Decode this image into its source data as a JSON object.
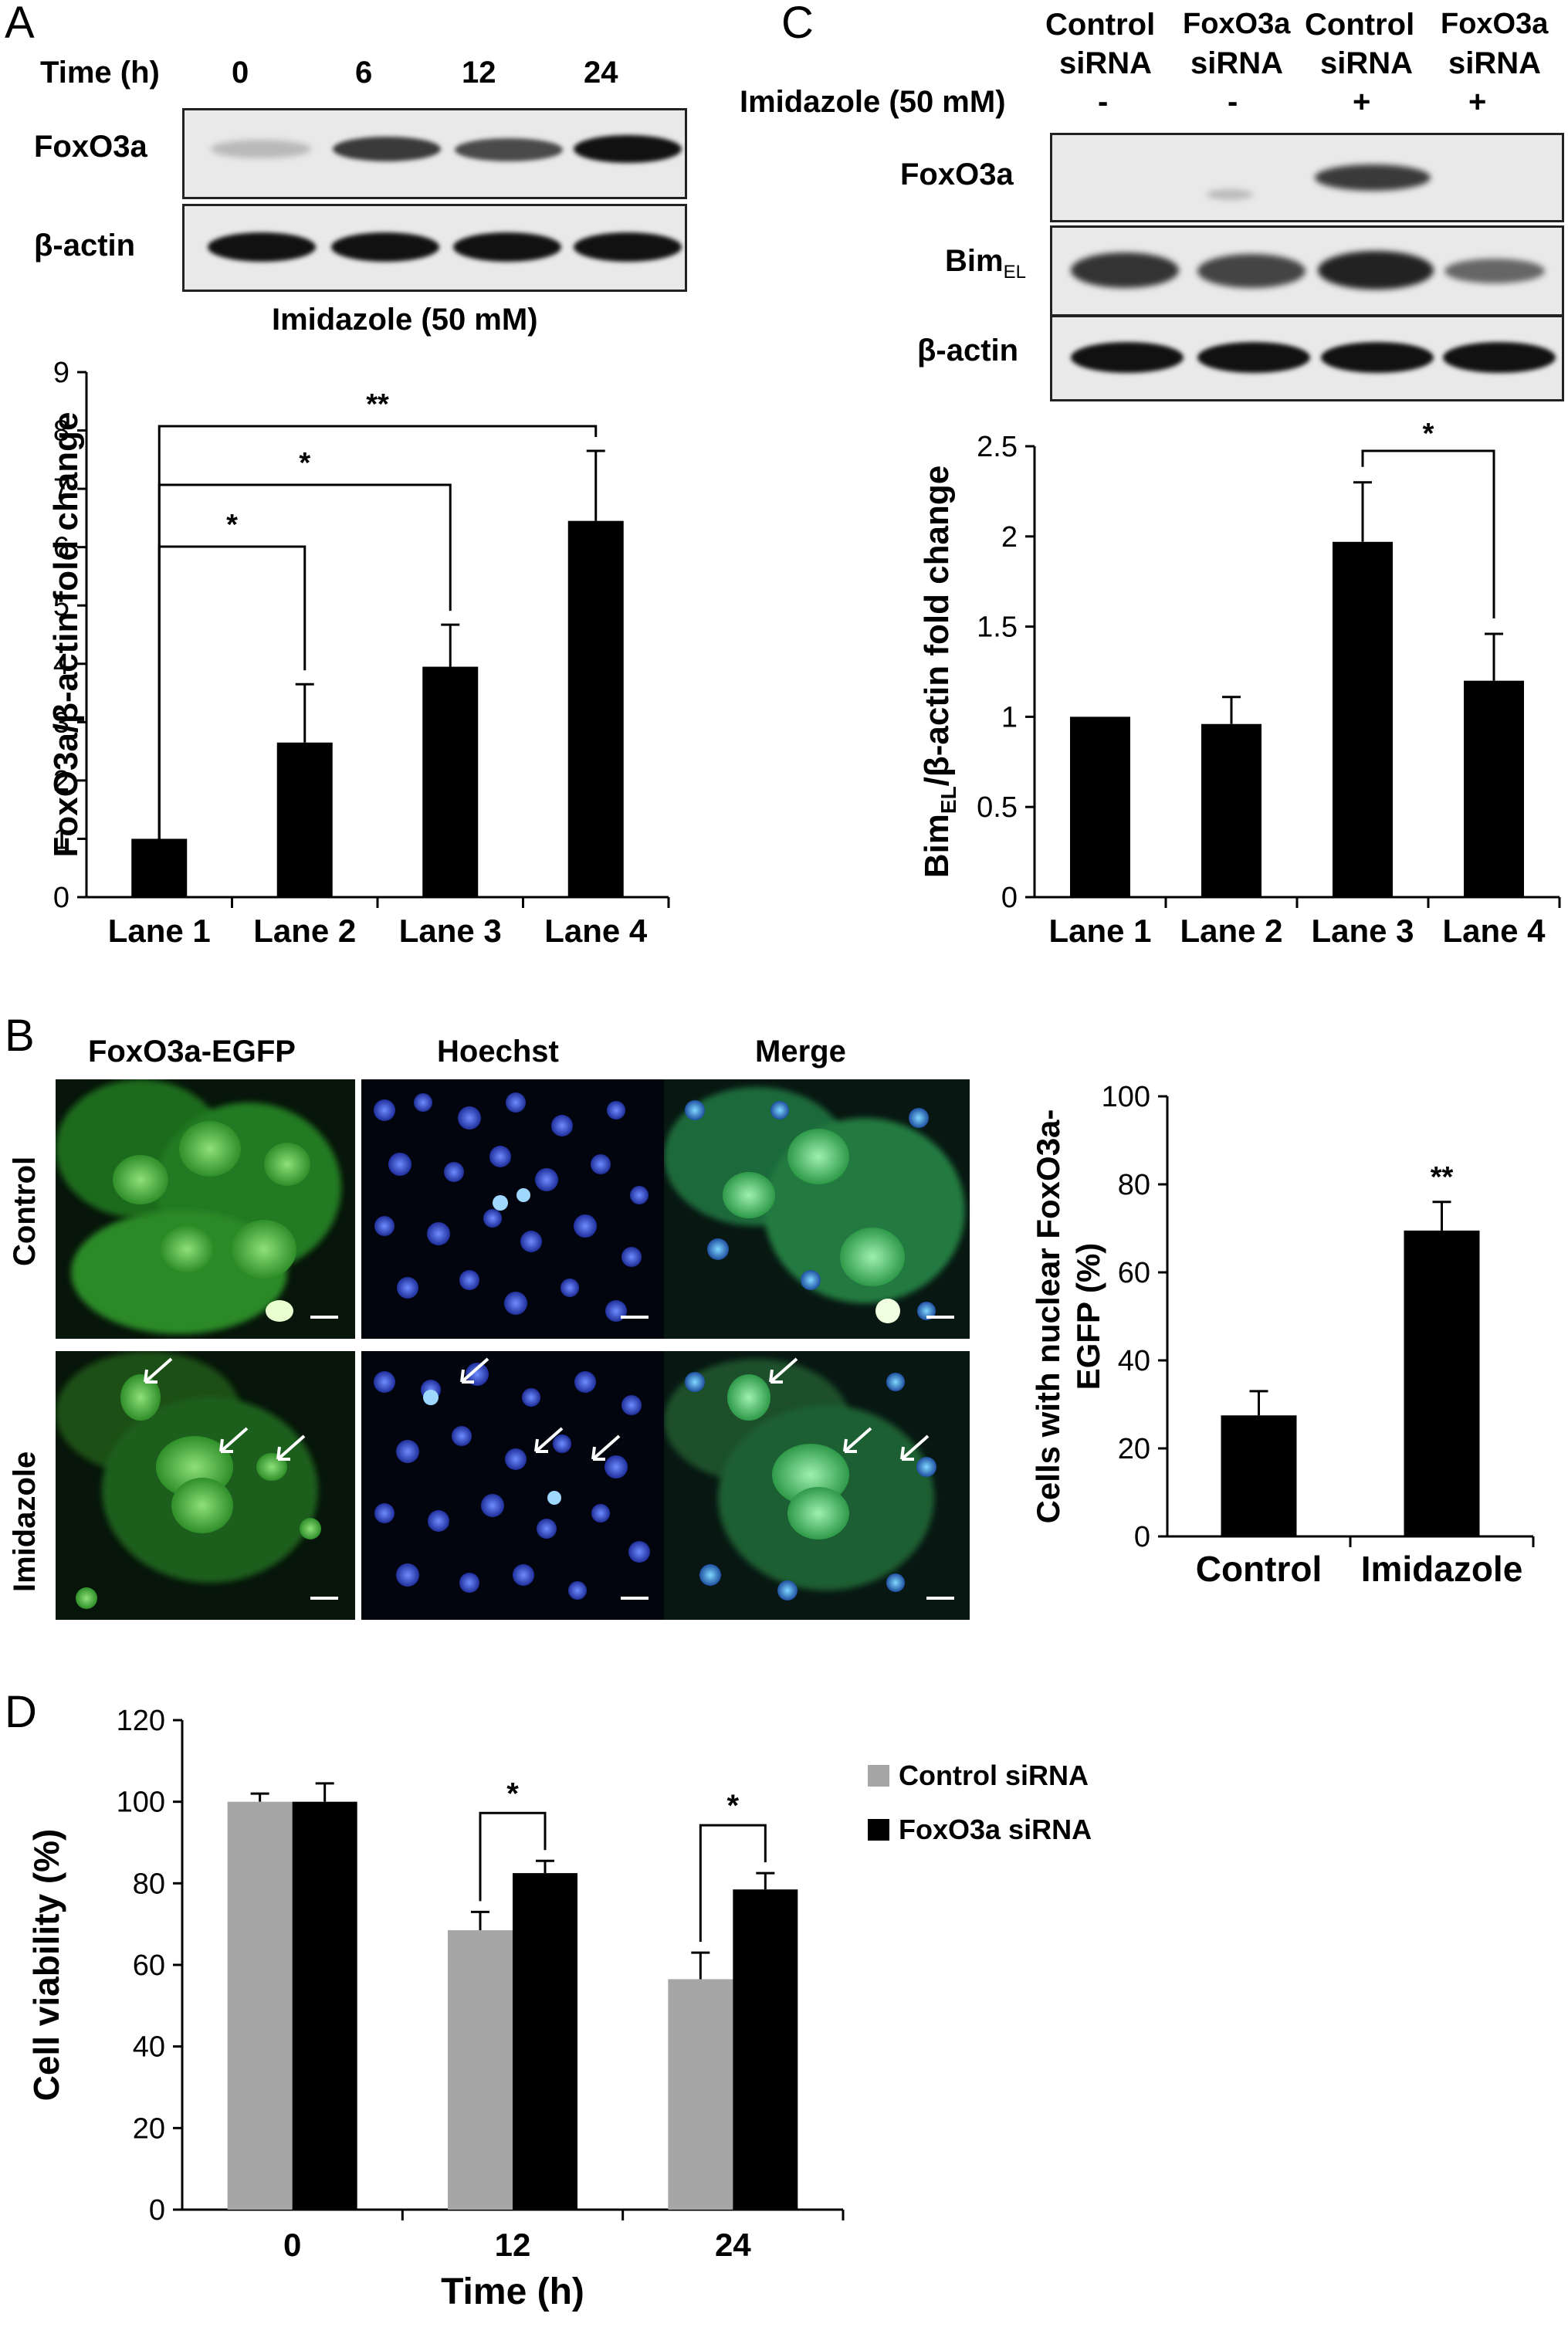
{
  "panelA": {
    "letter": "A",
    "time_label": "Time (h)",
    "times": [
      "0",
      "6",
      "12",
      "24"
    ],
    "blot_labels": [
      "FoxO3a",
      "β-actin"
    ],
    "treatment": "Imidazole (50 mM)",
    "chart_data": {
      "type": "bar",
      "categories": [
        "Lane 1",
        "Lane 2",
        "Lane 3",
        "Lane 4"
      ],
      "values": [
        1,
        2.65,
        3.95,
        6.45
      ],
      "errors": [
        0,
        1.0,
        0.72,
        1.2
      ],
      "ylabel": "FoxO3a/β-actin fold change",
      "ylim": [
        0,
        9
      ],
      "yticks": [
        0,
        1,
        2,
        3,
        4,
        5,
        6,
        7,
        8,
        9
      ],
      "significance": [
        {
          "from": 0,
          "to": 1,
          "label": "*"
        },
        {
          "from": 0,
          "to": 2,
          "label": "*"
        },
        {
          "from": 0,
          "to": 3,
          "label": "**"
        }
      ],
      "bar_color": "#000000"
    }
  },
  "panelC": {
    "letter": "C",
    "columns": [
      {
        "line1": "Control",
        "line2": "siRNA"
      },
      {
        "line1": "FoxO3a",
        "line2": "siRNA"
      },
      {
        "line1": "Control",
        "line2": "siRNA"
      },
      {
        "line1": "FoxO3a",
        "line2": "siRNA"
      }
    ],
    "treatment_label": "Imidazole (50 mM)",
    "treatment_signs": [
      "-",
      "-",
      "+",
      "+"
    ],
    "blot_labels": [
      "FoxO3a",
      "Bim",
      "β-actin"
    ],
    "bim_subscript": "EL",
    "chart_data": {
      "type": "bar",
      "categories": [
        "Lane 1",
        "Lane 2",
        "Lane 3",
        "Lane 4"
      ],
      "values": [
        1,
        0.96,
        1.97,
        1.2
      ],
      "errors": [
        0,
        0.15,
        0.33,
        0.26
      ],
      "ylabel_main": "Bim",
      "ylabel_sub": "EL",
      "ylabel_rest": "/β-actin fold change",
      "ylim": [
        0,
        2.5
      ],
      "yticks": [
        0,
        0.5,
        1,
        1.5,
        2,
        2.5
      ],
      "ytick_labels": [
        "0",
        "0.5",
        "1",
        "1.5",
        "2",
        "2.5"
      ],
      "significance": [
        {
          "from": 2,
          "to": 3,
          "label": "*"
        }
      ],
      "bar_color": "#000000"
    }
  },
  "panelB": {
    "letter": "B",
    "columns": [
      "FoxO3a-EGFP",
      "Hoechst",
      "Merge"
    ],
    "rows": [
      "Control",
      "Imidazole"
    ],
    "chart_data": {
      "type": "bar",
      "categories": [
        "Control",
        "Imidazole"
      ],
      "values": [
        27.5,
        69.5
      ],
      "errors": [
        5.5,
        6.5
      ],
      "ylabel_line1": "Cells with nuclear FoxO3a-",
      "ylabel_line2": "EGFP (%)",
      "ylim": [
        0,
        100
      ],
      "yticks": [
        0,
        20,
        40,
        60,
        80,
        100
      ],
      "significance_labels": [
        "",
        "**"
      ],
      "bar_color": "#000000"
    }
  },
  "panelD": {
    "letter": "D",
    "chart_data": {
      "type": "bar",
      "categories": [
        "0",
        "12",
        "24"
      ],
      "xlabel": "Time (h)",
      "ylabel": "Cell viability (%)",
      "ylim": [
        0,
        120
      ],
      "yticks": [
        0,
        20,
        40,
        60,
        80,
        100,
        120
      ],
      "series": [
        {
          "name": "Control siRNA",
          "values": [
            100,
            68.5,
            56.5
          ],
          "errors": [
            2,
            4.5,
            6.5
          ],
          "color": "#a6a6a6"
        },
        {
          "name": "FoxO3a siRNA",
          "values": [
            100,
            82.5,
            78.5
          ],
          "errors": [
            4.5,
            3,
            4
          ],
          "color": "#000000"
        }
      ],
      "significance": [
        {
          "category": 1,
          "label": "*"
        },
        {
          "category": 2,
          "label": "*"
        }
      ],
      "legend_position": "right"
    }
  }
}
